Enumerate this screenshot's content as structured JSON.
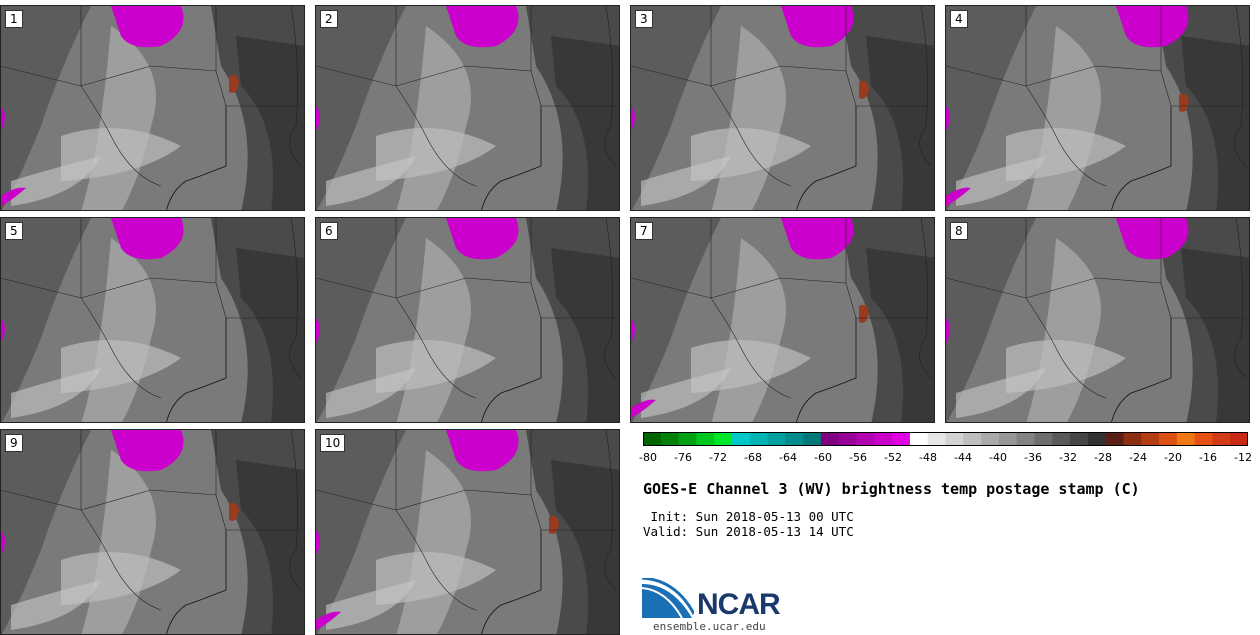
{
  "panels": [
    {
      "label": "1"
    },
    {
      "label": "2"
    },
    {
      "label": "3"
    },
    {
      "label": "4"
    },
    {
      "label": "5"
    },
    {
      "label": "6"
    },
    {
      "label": "7"
    },
    {
      "label": "8"
    },
    {
      "label": "9"
    },
    {
      "label": "10"
    }
  ],
  "colorbar": {
    "ticks": [
      "-80",
      "-76",
      "-72",
      "-68",
      "-64",
      "-60",
      "-56",
      "-52",
      "-48",
      "-44",
      "-40",
      "-36",
      "-32",
      "-28",
      "-24",
      "-20",
      "-16",
      "-12"
    ],
    "colors": [
      "#006400",
      "#00800a",
      "#00a014",
      "#00c81e",
      "#00e628",
      "#00c8c8",
      "#00b4b4",
      "#00a0a0",
      "#008c8c",
      "#007878",
      "#800080",
      "#960096",
      "#b000b0",
      "#c800c8",
      "#e000e0",
      "#ffffff",
      "#e6e6e6",
      "#d2d2d2",
      "#bebebe",
      "#aaaaaa",
      "#969696",
      "#828282",
      "#6e6e6e",
      "#5a5a5a",
      "#464646",
      "#323232",
      "#5a1e14",
      "#8c2d14",
      "#b43c14",
      "#dc5014",
      "#f07814",
      "#e65014",
      "#d23c14",
      "#c82814"
    ]
  },
  "title": "GOES-E Channel 3 (WV) brightness temp postage stamp (C)",
  "init": " Init: Sun 2018-05-13 00 UTC",
  "valid": "Valid: Sun 2018-05-13 14 UTC",
  "logo": {
    "text": "NCAR",
    "url": "ensemble.ucar.edu"
  }
}
